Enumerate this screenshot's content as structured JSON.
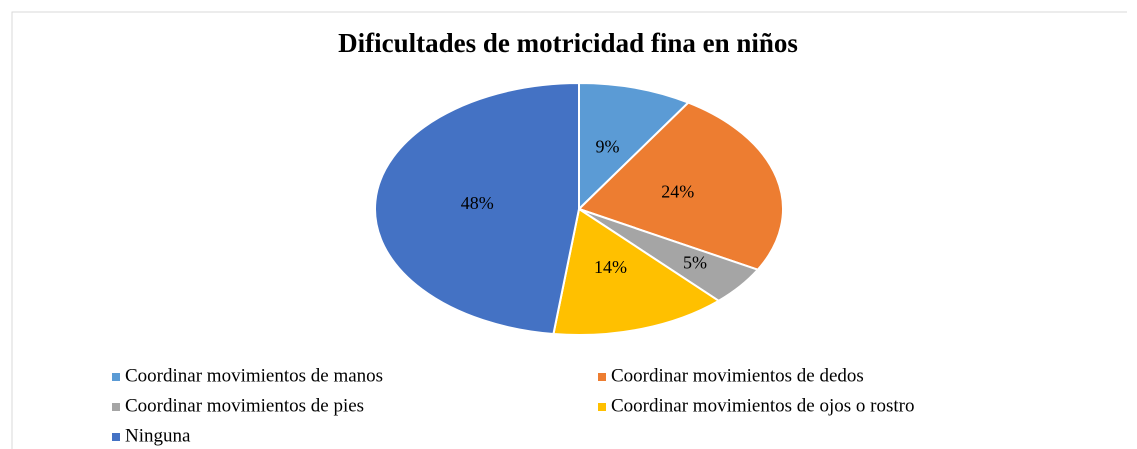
{
  "chart_data": {
    "type": "pie",
    "title": "Dificultades de motricidad fina en niños",
    "categories": [
      "Coordinar movimientos de manos",
      "Coordinar movimientos de dedos",
      "Coordinar movimientos de pies",
      "Coordinar movimientos de ojos o rostro",
      "Ninguna"
    ],
    "values": [
      9,
      24,
      5,
      14,
      48
    ],
    "value_labels": [
      "9%",
      "24%",
      "5%",
      "14%",
      "48%"
    ],
    "colors": [
      "#5b9bd5",
      "#ed7d31",
      "#a5a5a5",
      "#ffc000",
      "#4472c4"
    ],
    "legend": "bottom"
  }
}
